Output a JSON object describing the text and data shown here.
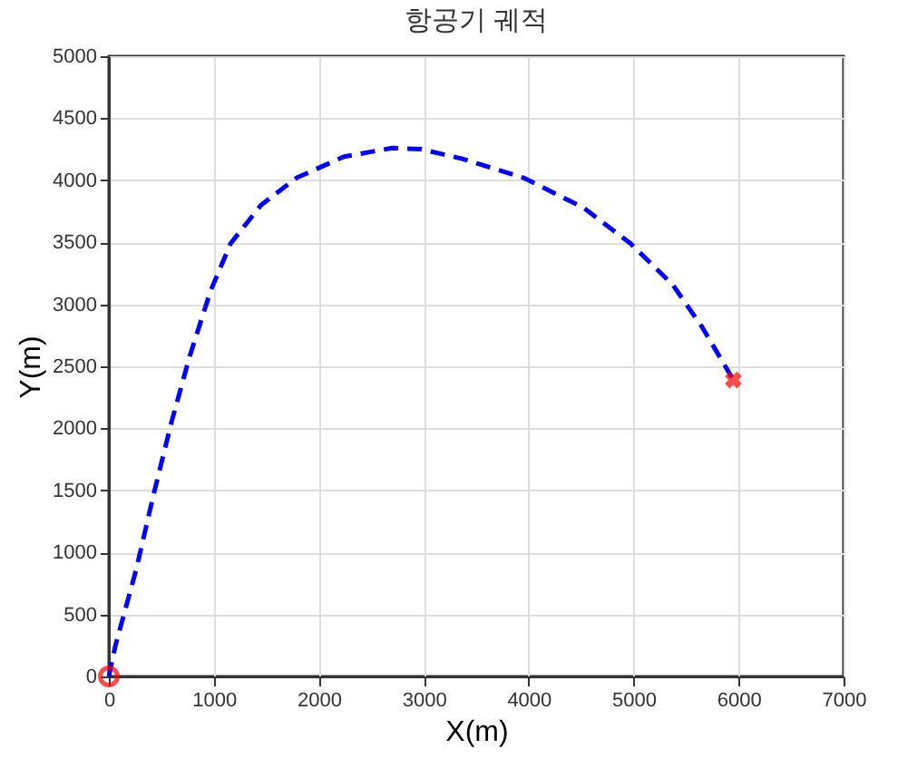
{
  "chart_data": {
    "type": "line",
    "title": "항공기 궤적",
    "xlabel": "X(m)",
    "ylabel": "Y(m)",
    "xlim": [
      0,
      7000
    ],
    "xticks": [
      0,
      1000,
      2000,
      3000,
      4000,
      5000,
      6000,
      7000
    ],
    "ylim": [
      0,
      5000
    ],
    "yticks": [
      0,
      500,
      1000,
      1500,
      2000,
      2500,
      3000,
      3500,
      4000,
      4500,
      5000
    ],
    "grid": true,
    "series": [
      {
        "color": "#0000ff",
        "line_style": "dashed",
        "marker": "none",
        "x": [
          0,
          60,
          260,
          430,
          600,
          770,
          970,
          1160,
          1450,
          1790,
          2240,
          2700,
          2980,
          3380,
          3950,
          4520,
          4970,
          5370,
          5650,
          5950
        ],
        "values": [
          0,
          240,
          860,
          1480,
          2060,
          2580,
          3110,
          3490,
          3800,
          4020,
          4190,
          4260,
          4250,
          4170,
          4020,
          3780,
          3490,
          3160,
          2820,
          2390
        ]
      },
      {
        "type": "scatter",
        "color": "#ff0000",
        "marker": "circle",
        "x": [
          0
        ],
        "values": [
          0
        ]
      },
      {
        "type": "scatter",
        "color": "#ff0000",
        "marker": "cross",
        "x": [
          5950
        ],
        "values": [
          2390
        ]
      }
    ]
  }
}
